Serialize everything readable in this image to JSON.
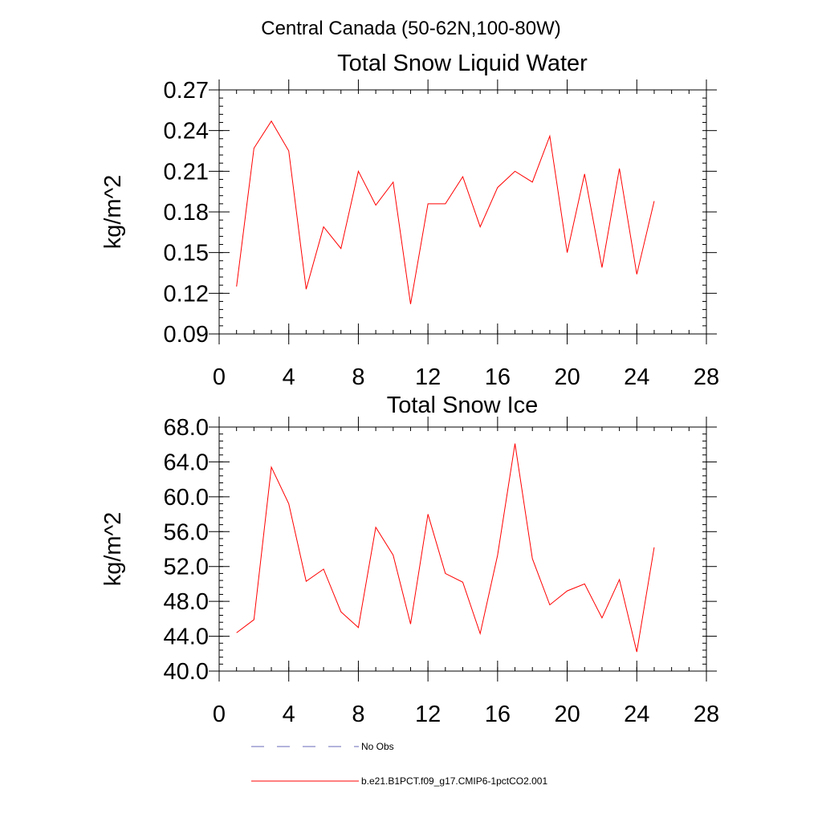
{
  "suptitle": "Central Canada (50-62N,100-80W)",
  "chart_data": [
    {
      "type": "line",
      "title": "Total Snow Liquid Water",
      "xlabel": "",
      "ylabel": "kg/m^2",
      "xlim": [
        0,
        28
      ],
      "ylim": [
        0.09,
        0.27
      ],
      "xticks": [
        0,
        4,
        8,
        12,
        16,
        20,
        24,
        28
      ],
      "xtick_labels": [
        "0",
        "4",
        "8",
        "12",
        "16",
        "20",
        "24",
        "28"
      ],
      "yticks": [
        0.09,
        0.12,
        0.15,
        0.18,
        0.21,
        0.24,
        0.27
      ],
      "ytick_labels": [
        "0.09",
        "0.12",
        "0.15",
        "0.18",
        "0.21",
        "0.24",
        "0.27"
      ],
      "series": [
        {
          "name": "b.e21.B1PCT.f09_g17.CMIP6-1pctCO2.001",
          "color": "#ff0000",
          "x": [
            1,
            2,
            3,
            4,
            5,
            6,
            7,
            8,
            9,
            10,
            11,
            12,
            13,
            14,
            15,
            16,
            17,
            18,
            19,
            20,
            21,
            22,
            23,
            24,
            25
          ],
          "values": [
            0.125,
            0.227,
            0.247,
            0.225,
            0.123,
            0.169,
            0.153,
            0.21,
            0.185,
            0.202,
            0.112,
            0.186,
            0.186,
            0.206,
            0.169,
            0.198,
            0.21,
            0.202,
            0.236,
            0.15,
            0.208,
            0.139,
            0.212,
            0.134,
            0.188
          ]
        }
      ]
    },
    {
      "type": "line",
      "title": "Total Snow Ice",
      "xlabel": "",
      "ylabel": "kg/m^2",
      "xlim": [
        0,
        28
      ],
      "ylim": [
        40.0,
        68.0
      ],
      "xticks": [
        0,
        4,
        8,
        12,
        16,
        20,
        24,
        28
      ],
      "xtick_labels": [
        "0",
        "4",
        "8",
        "12",
        "16",
        "20",
        "24",
        "28"
      ],
      "yticks": [
        40.0,
        44.0,
        48.0,
        52.0,
        56.0,
        60.0,
        64.0,
        68.0
      ],
      "ytick_labels": [
        "40.0",
        "44.0",
        "48.0",
        "52.0",
        "56.0",
        "60.0",
        "64.0",
        "68.0"
      ],
      "series": [
        {
          "name": "b.e21.B1PCT.f09_g17.CMIP6-1pctCO2.001",
          "color": "#ff0000",
          "x": [
            1,
            2,
            3,
            4,
            5,
            6,
            7,
            8,
            9,
            10,
            11,
            12,
            13,
            14,
            15,
            16,
            17,
            18,
            19,
            20,
            21,
            22,
            23,
            24,
            25
          ],
          "values": [
            44.4,
            45.9,
            63.4,
            59.2,
            50.3,
            51.7,
            46.8,
            45.0,
            56.5,
            53.3,
            45.4,
            58.0,
            51.2,
            50.2,
            44.3,
            53.3,
            66.1,
            52.9,
            47.6,
            49.2,
            50.0,
            46.1,
            50.5,
            42.2,
            54.2
          ]
        }
      ]
    }
  ],
  "legend": {
    "placement": "bottom",
    "items": [
      {
        "label": "No Obs",
        "color": "#6a6ab8",
        "style": "dashed"
      },
      {
        "label": "b.e21.B1PCT.f09_g17.CMIP6-1pctCO2.001",
        "color": "#ff0000",
        "style": "solid"
      }
    ]
  }
}
